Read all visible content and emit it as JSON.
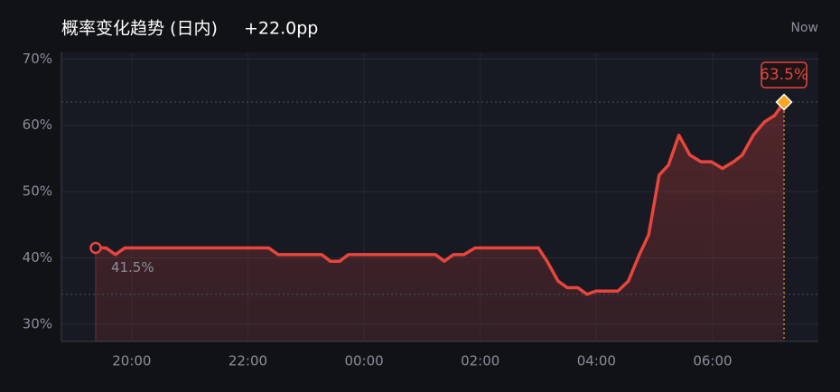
{
  "chart_data": {
    "type": "line",
    "title": "概率变化趋势 (日内)",
    "change": "+22.0pp",
    "now_label": "Now",
    "x": [
      19.38,
      19.56,
      19.72,
      19.88,
      22.36,
      22.52,
      23.27,
      23.42,
      23.58,
      23.73,
      25.23,
      25.38,
      25.54,
      25.72,
      25.91,
      27.0,
      27.15,
      27.34,
      27.5,
      27.68,
      27.84,
      27.99,
      28.37,
      28.55,
      28.74,
      28.9,
      29.08,
      29.24,
      29.42,
      29.61,
      29.8,
      29.98,
      30.17,
      30.36,
      30.51,
      30.7,
      30.89,
      31.07,
      31.23
    ],
    "series": [
      {
        "color": "#e8453c",
        "values": [
          41.5,
          41.5,
          40.5,
          41.5,
          41.5,
          40.5,
          40.5,
          39.5,
          39.5,
          40.5,
          40.5,
          39.5,
          40.5,
          40.5,
          41.5,
          41.5,
          39.5,
          36.5,
          35.5,
          35.5,
          34.5,
          35,
          35,
          36.5,
          40.5,
          43.5,
          52.5,
          54,
          58.5,
          55.5,
          54.5,
          54.5,
          53.5,
          54.5,
          55.5,
          58.5,
          60.5,
          61.5,
          63.5
        ],
        "value_labels": [
          "41.5%",
          null,
          null,
          null,
          null,
          null,
          null,
          null,
          null,
          null,
          null,
          null,
          null,
          null,
          null,
          null,
          null,
          null,
          null,
          null,
          null,
          null,
          null,
          null,
          null,
          null,
          null,
          null,
          null,
          null,
          null,
          null,
          null,
          null,
          null,
          null,
          null,
          null,
          "63.5%"
        ]
      }
    ],
    "xlim": [
      18.79,
      31.82
    ],
    "xticks": [
      {
        "value": 20,
        "label": "20:00"
      },
      {
        "value": 22,
        "label": "22:00"
      },
      {
        "value": 24,
        "label": "00:00"
      },
      {
        "value": 26,
        "label": "02:00"
      },
      {
        "value": 28,
        "label": "04:00"
      },
      {
        "value": 30,
        "label": "06:00"
      }
    ],
    "ylim": [
      27.4,
      71
    ],
    "yticks": [
      {
        "value": 30,
        "label": "30%"
      },
      {
        "value": 40,
        "label": "40%"
      },
      {
        "value": 50,
        "label": "50%"
      },
      {
        "value": 60,
        "label": "60%"
      },
      {
        "value": 70,
        "label": "70%"
      }
    ],
    "grid": true,
    "marker_color": "#f5a623"
  }
}
